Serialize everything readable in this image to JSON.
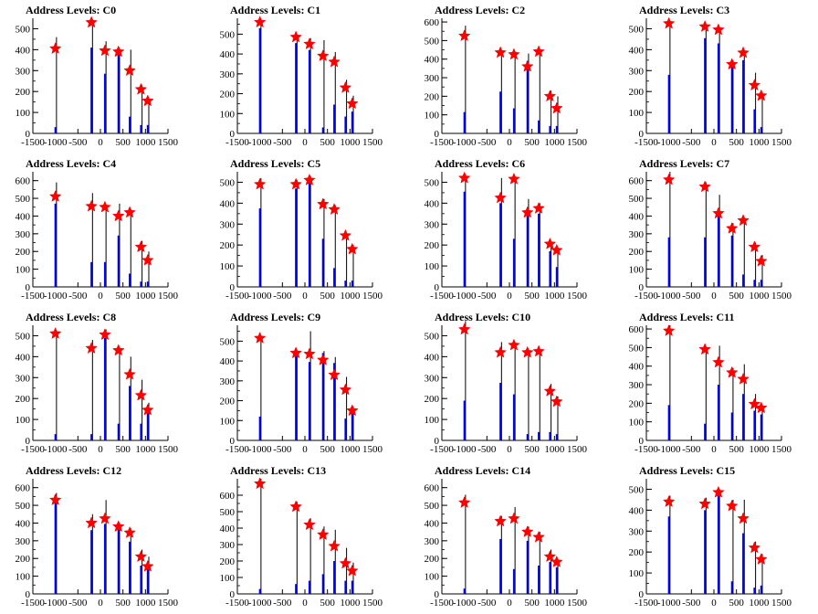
{
  "chart_data": {
    "type": "bar",
    "description_kind": "grid of 16 histograms with red star markers",
    "xlim": [
      -1500,
      1500
    ],
    "x_ticks": [
      "-1500",
      "-1000",
      "-500",
      "0",
      "500",
      "1000",
      "1500"
    ],
    "colors": {
      "bar": "#0000ff",
      "outline": "#000000",
      "marker": "#ff0000"
    },
    "marker_x": [
      -1000,
      -200,
      100,
      400,
      650,
      900,
      1050
    ],
    "panels": [
      {
        "title": "Address Levels: C0",
        "ylim": [
          0,
          550
        ],
        "y_ticks": [
          "100",
          "200",
          "300",
          "400",
          "500"
        ],
        "black_peaks": [
          460,
          545,
          440,
          400,
          400,
          230,
          160
        ],
        "blue_bars": [
          30,
          410,
          285,
          380,
          80,
          40,
          40
        ],
        "stars": [
          405,
          530,
          395,
          390,
          300,
          210,
          155
        ]
      },
      {
        "title": "Address Levels: C1",
        "ylim": [
          0,
          580
        ],
        "y_ticks": [
          "100",
          "200",
          "300",
          "400",
          "500"
        ],
        "black_peaks": [
          580,
          490,
          480,
          470,
          410,
          270,
          190
        ],
        "blue_bars": [
          530,
          455,
          420,
          30,
          145,
          85,
          110
        ],
        "stars": [
          560,
          485,
          450,
          390,
          360,
          230,
          150
        ]
      },
      {
        "title": "Address Levels: C2",
        "ylim": [
          0,
          620
        ],
        "y_ticks": [
          "100",
          "200",
          "300",
          "400",
          "500",
          "600"
        ],
        "black_peaks": [
          580,
          440,
          430,
          430,
          430,
          230,
          200
        ],
        "blue_bars": [
          115,
          225,
          135,
          390,
          70,
          40,
          40
        ],
        "stars": [
          525,
          435,
          425,
          360,
          440,
          200,
          135
        ]
      },
      {
        "title": "Address Levels: C3",
        "ylim": [
          0,
          550
        ],
        "y_ticks": [
          "100",
          "200",
          "300",
          "400",
          "500"
        ],
        "black_peaks": [
          540,
          520,
          500,
          350,
          390,
          290,
          195
        ],
        "blue_bars": [
          280,
          455,
          430,
          325,
          350,
          115,
          30
        ],
        "stars": [
          525,
          510,
          495,
          330,
          385,
          230,
          180
        ]
      },
      {
        "title": "Address Levels: C4",
        "ylim": [
          0,
          650
        ],
        "y_ticks": [
          "100",
          "200",
          "300",
          "400",
          "500",
          "600"
        ],
        "black_peaks": [
          590,
          530,
          460,
          470,
          440,
          260,
          200
        ],
        "blue_bars": [
          470,
          140,
          140,
          290,
          75,
          30,
          30
        ],
        "stars": [
          510,
          455,
          450,
          400,
          420,
          225,
          150
        ]
      },
      {
        "title": "Address Levels: C5",
        "ylim": [
          0,
          550
        ],
        "y_ticks": [
          "100",
          "200",
          "300",
          "400",
          "500"
        ],
        "black_peaks": [
          520,
          510,
          530,
          420,
          390,
          250,
          200
        ],
        "blue_bars": [
          375,
          470,
          505,
          230,
          90,
          30,
          30
        ],
        "stars": [
          490,
          490,
          510,
          395,
          370,
          245,
          180
        ]
      },
      {
        "title": "Address Levels: C6",
        "ylim": [
          0,
          550
        ],
        "y_ticks": [
          "100",
          "200",
          "300",
          "400",
          "500"
        ],
        "black_peaks": [
          540,
          520,
          530,
          420,
          400,
          220,
          180
        ],
        "blue_bars": [
          455,
          400,
          230,
          340,
          350,
          170,
          95
        ],
        "stars": [
          520,
          425,
          515,
          355,
          375,
          205,
          175
        ]
      },
      {
        "title": "Address Levels: C7",
        "ylim": [
          0,
          650
        ],
        "y_ticks": [
          "100",
          "200",
          "300",
          "400",
          "500",
          "600"
        ],
        "black_peaks": [
          650,
          590,
          520,
          360,
          390,
          250,
          180
        ],
        "blue_bars": [
          280,
          280,
          420,
          290,
          70,
          40,
          40
        ],
        "stars": [
          605,
          565,
          415,
          330,
          375,
          225,
          145
        ]
      },
      {
        "title": "Address Levels: C8",
        "ylim": [
          0,
          550
        ],
        "y_ticks": [
          "100",
          "200",
          "300",
          "400",
          "500"
        ],
        "black_peaks": [
          520,
          480,
          530,
          440,
          400,
          290,
          180
        ],
        "blue_bars": [
          30,
          30,
          490,
          80,
          260,
          80,
          130
        ],
        "stars": [
          510,
          440,
          505,
          430,
          315,
          215,
          145
        ]
      },
      {
        "title": "Address Levels: C9",
        "ylim": [
          0,
          580
        ],
        "y_ticks": [
          "100",
          "200",
          "300",
          "400",
          "500"
        ],
        "black_peaks": [
          520,
          450,
          550,
          450,
          420,
          320,
          170
        ],
        "blue_bars": [
          120,
          430,
          395,
          440,
          390,
          110,
          150
        ],
        "stars": [
          515,
          440,
          435,
          405,
          330,
          255,
          150
        ]
      },
      {
        "title": "Address Levels: C10",
        "ylim": [
          0,
          550
        ],
        "y_ticks": [
          "100",
          "200",
          "300",
          "400",
          "500"
        ],
        "black_peaks": [
          570,
          470,
          465,
          430,
          435,
          270,
          210
        ],
        "blue_bars": [
          190,
          275,
          220,
          30,
          40,
          40,
          30
        ],
        "stars": [
          530,
          420,
          455,
          420,
          425,
          235,
          185
        ]
      },
      {
        "title": "Address Levels: C11",
        "ylim": [
          0,
          620
        ],
        "y_ticks": [
          "100",
          "200",
          "300",
          "400",
          "500",
          "600"
        ],
        "black_peaks": [
          620,
          500,
          510,
          390,
          410,
          250,
          180
        ],
        "blue_bars": [
          190,
          90,
          300,
          150,
          250,
          160,
          140
        ],
        "stars": [
          590,
          490,
          420,
          365,
          330,
          195,
          175
        ]
      },
      {
        "title": "Address Levels: C12",
        "ylim": [
          0,
          650
        ],
        "y_ticks": [
          "100",
          "200",
          "300",
          "400",
          "500",
          "600"
        ],
        "black_peaks": [
          570,
          450,
          530,
          400,
          370,
          250,
          210
        ],
        "blue_bars": [
          560,
          360,
          395,
          370,
          295,
          160,
          150
        ],
        "stars": [
          530,
          400,
          425,
          380,
          345,
          210,
          155
        ]
      },
      {
        "title": "Address Levels: C13",
        "ylim": [
          0,
          700
        ],
        "y_ticks": [
          "100",
          "200",
          "300",
          "400",
          "500",
          "600"
        ],
        "black_peaks": [
          700,
          560,
          460,
          410,
          390,
          280,
          190
        ],
        "blue_bars": [
          30,
          60,
          80,
          120,
          200,
          80,
          80
        ],
        "stars": [
          670,
          530,
          420,
          360,
          290,
          185,
          140
        ]
      },
      {
        "title": "Address Levels: C14",
        "ylim": [
          0,
          650
        ],
        "y_ticks": [
          "100",
          "200",
          "300",
          "400",
          "500",
          "600"
        ],
        "black_peaks": [
          560,
          440,
          490,
          380,
          350,
          250,
          190
        ],
        "blue_bars": [
          30,
          310,
          140,
          300,
          160,
          180,
          150
        ],
        "stars": [
          515,
          410,
          425,
          350,
          320,
          210,
          180
        ]
      },
      {
        "title": "Address Levels: C15",
        "ylim": [
          0,
          550
        ],
        "y_ticks": [
          "100",
          "200",
          "300",
          "400",
          "500"
        ],
        "black_peaks": [
          470,
          460,
          500,
          450,
          450,
          250,
          190
        ],
        "blue_bars": [
          370,
          400,
          470,
          60,
          290,
          30,
          40
        ],
        "stars": [
          440,
          430,
          485,
          420,
          360,
          220,
          165
        ]
      }
    ]
  }
}
